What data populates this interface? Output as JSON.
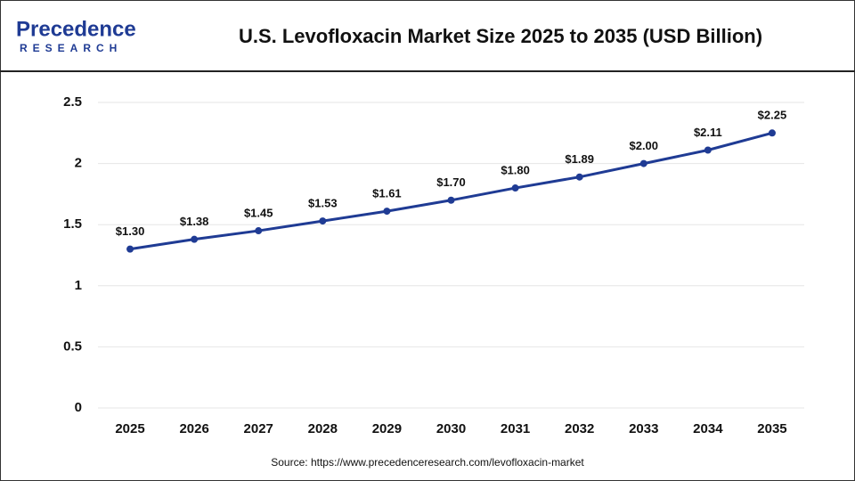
{
  "logo": {
    "name": "Precedence",
    "tagline": "RESEARCH"
  },
  "source": "Source: https://www.precedenceresearch.com/levofloxacin-market",
  "chart_data": {
    "type": "line",
    "title": "U.S. Levofloxacin Market Size 2025 to 2035 (USD Billion)",
    "categories": [
      "2025",
      "2026",
      "2027",
      "2028",
      "2029",
      "2030",
      "2031",
      "2032",
      "2033",
      "2034",
      "2035"
    ],
    "values": [
      1.3,
      1.38,
      1.45,
      1.53,
      1.61,
      1.7,
      1.8,
      1.89,
      2.0,
      2.11,
      2.25
    ],
    "value_labels": [
      "$1.30",
      "$1.38",
      "$1.45",
      "$1.53",
      "$1.61",
      "$1.70",
      "$1.80",
      "$1.89",
      "$2.00",
      "$2.11",
      "$2.25"
    ],
    "color": "#1f3b94",
    "ylim": [
      0,
      2.5
    ],
    "yticks": [
      0,
      0.5,
      1,
      1.5,
      2,
      2.5
    ],
    "grid": true
  }
}
